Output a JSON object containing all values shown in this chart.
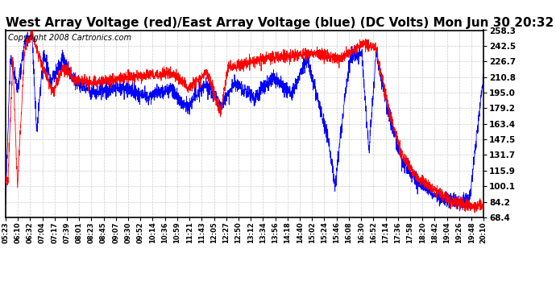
{
  "title": "West Array Voltage (red)/East Array Voltage (blue) (DC Volts) Mon Jun 30 20:32",
  "copyright": "Copyright 2008 Cartronics.com",
  "yticks": [
    68.4,
    84.2,
    100.1,
    115.9,
    131.7,
    147.5,
    163.4,
    179.2,
    195.0,
    210.8,
    226.7,
    242.5,
    258.3
  ],
  "ymin": 68.4,
  "ymax": 258.3,
  "background_color": "#ffffff",
  "grid_color": "#cccccc",
  "red_color": "#ff0000",
  "blue_color": "#0000ff",
  "title_fontsize": 11,
  "copyright_fontsize": 7,
  "xtick_labels": [
    "05:23",
    "06:10",
    "06:32",
    "07:04",
    "07:17",
    "07:39",
    "08:01",
    "08:23",
    "08:45",
    "09:07",
    "09:30",
    "09:52",
    "10:14",
    "10:36",
    "10:59",
    "11:21",
    "11:43",
    "12:05",
    "12:27",
    "12:50",
    "13:12",
    "13:34",
    "13:56",
    "14:18",
    "14:40",
    "15:02",
    "15:24",
    "15:46",
    "16:08",
    "16:30",
    "16:52",
    "17:14",
    "17:36",
    "17:58",
    "18:20",
    "18:42",
    "19:04",
    "19:26",
    "19:48",
    "20:10"
  ],
  "n_points": 3000
}
